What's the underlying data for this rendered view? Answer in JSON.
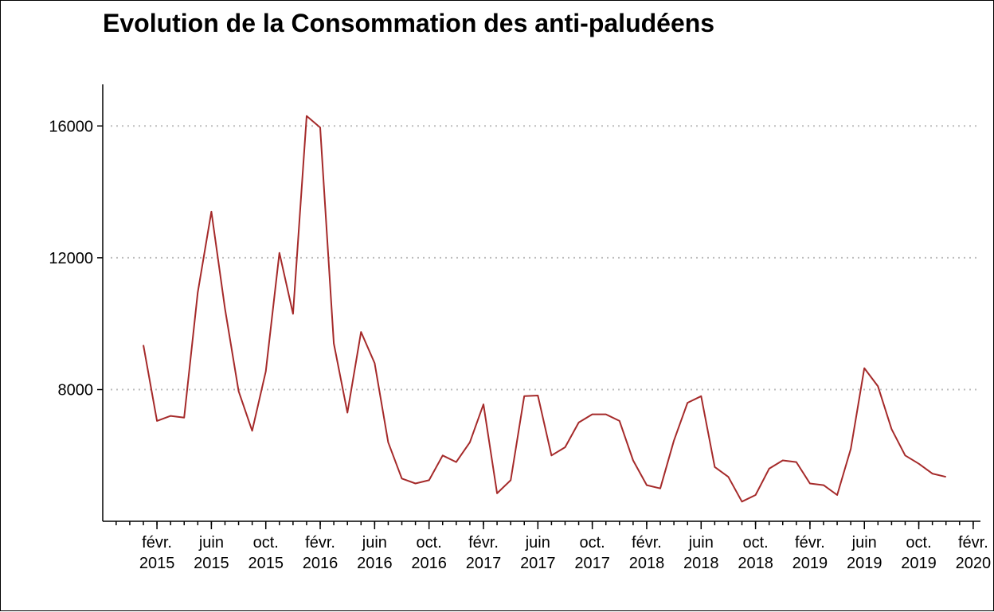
{
  "chart_data": {
    "type": "line",
    "title": "Evolution de la Consommation des anti-paludéens",
    "xlabel": "",
    "ylabel": "",
    "ylim": [
      4100,
      16900
    ],
    "y_ticks": [
      8000,
      12000,
      16000
    ],
    "grid": "horizontal-dotted",
    "line_color": "#A52A2A",
    "x_ticks": [
      {
        "month": 2,
        "year": 2015,
        "label1": "févr.",
        "label2": "2015"
      },
      {
        "month": 6,
        "year": 2015,
        "label1": "juin",
        "label2": "2015"
      },
      {
        "month": 10,
        "year": 2015,
        "label1": "oct.",
        "label2": "2015"
      },
      {
        "month": 2,
        "year": 2016,
        "label1": "févr.",
        "label2": "2016"
      },
      {
        "month": 6,
        "year": 2016,
        "label1": "juin",
        "label2": "2016"
      },
      {
        "month": 10,
        "year": 2016,
        "label1": "oct.",
        "label2": "2016"
      },
      {
        "month": 2,
        "year": 2017,
        "label1": "févr.",
        "label2": "2017"
      },
      {
        "month": 6,
        "year": 2017,
        "label1": "juin",
        "label2": "2017"
      },
      {
        "month": 10,
        "year": 2017,
        "label1": "oct.",
        "label2": "2017"
      },
      {
        "month": 2,
        "year": 2018,
        "label1": "févr.",
        "label2": "2018"
      },
      {
        "month": 6,
        "year": 2018,
        "label1": "juin",
        "label2": "2018"
      },
      {
        "month": 10,
        "year": 2018,
        "label1": "oct.",
        "label2": "2018"
      },
      {
        "month": 2,
        "year": 2019,
        "label1": "févr.",
        "label2": "2019"
      },
      {
        "month": 6,
        "year": 2019,
        "label1": "juin",
        "label2": "2019"
      },
      {
        "month": 10,
        "year": 2019,
        "label1": "oct.",
        "label2": "2019"
      },
      {
        "month": 2,
        "year": 2020,
        "label1": "févr.",
        "label2": "2020"
      }
    ],
    "x": [
      "2015-01",
      "2015-02",
      "2015-03",
      "2015-04",
      "2015-05",
      "2015-06",
      "2015-07",
      "2015-08",
      "2015-09",
      "2015-10",
      "2015-11",
      "2015-12",
      "2016-01",
      "2016-02",
      "2016-03",
      "2016-04",
      "2016-05",
      "2016-06",
      "2016-07",
      "2016-08",
      "2016-09",
      "2016-10",
      "2016-11",
      "2016-12",
      "2017-01",
      "2017-02",
      "2017-03",
      "2017-04",
      "2017-05",
      "2017-06",
      "2017-07",
      "2017-08",
      "2017-09",
      "2017-10",
      "2017-11",
      "2017-12",
      "2018-01",
      "2018-02",
      "2018-03",
      "2018-04",
      "2018-05",
      "2018-06",
      "2018-07",
      "2018-08",
      "2018-09",
      "2018-10",
      "2018-11",
      "2018-12",
      "2019-01",
      "2019-02",
      "2019-03",
      "2019-04",
      "2019-05",
      "2019-06",
      "2019-07",
      "2019-08",
      "2019-09",
      "2019-10",
      "2019-11",
      "2019-12"
    ],
    "values": [
      9350,
      7050,
      7200,
      7150,
      10950,
      13400,
      10450,
      7950,
      6750,
      8550,
      12150,
      10300,
      16300,
      15950,
      9400,
      7300,
      9750,
      8800,
      6400,
      5300,
      5150,
      5250,
      6000,
      5800,
      6400,
      7550,
      4850,
      5250,
      7800,
      7820,
      6000,
      6250,
      7000,
      7250,
      7250,
      7050,
      5850,
      5100,
      5000,
      6450,
      7600,
      7800,
      5650,
      5350,
      4600,
      4800,
      5600,
      5850,
      5800,
      5150,
      5100,
      4800,
      6200,
      8650,
      8100,
      6800,
      6000,
      5750,
      5450,
      5350
    ]
  }
}
